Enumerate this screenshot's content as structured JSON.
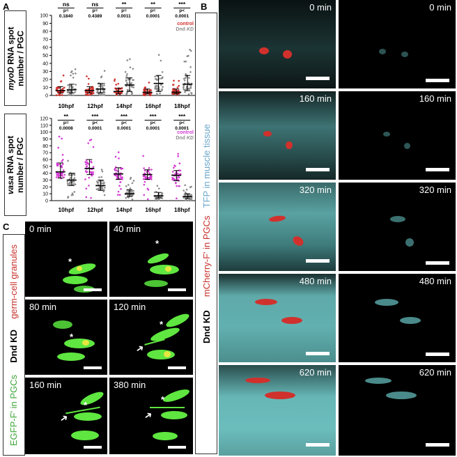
{
  "panels": {
    "A": "A",
    "B": "B",
    "C": "C"
  },
  "colors": {
    "red": "#d0312d",
    "magenta": "#d23cd2",
    "gray": "#8c8c8c",
    "green": "#5fe640",
    "cyan": "#6fd6d6",
    "tfp_label": "#6aa5c8",
    "mcherry_label": "#c8322d"
  },
  "A_top": {
    "ylabel_italic": "myoD",
    "ylabel_rest1": " RNA spot",
    "ylabel_line2": "number / PGC",
    "yticks": [
      "0",
      "10",
      "20",
      "30",
      "40",
      "50",
      "60",
      "70",
      "80",
      "90",
      "100"
    ],
    "categories": [
      "10hpf",
      "12hpf",
      "14hpf",
      "16hpf",
      "18hpf"
    ],
    "sig": [
      "ns",
      "ns",
      "**",
      "**",
      "***"
    ],
    "pline1": [
      "p=",
      "p=",
      "p=",
      "p=",
      "p<"
    ],
    "pline2": [
      "0.1840",
      "0.4389",
      "0.0011",
      "0.0001",
      "0.0001"
    ],
    "legend": {
      "control": "control",
      "kd_prefix": "Dnd ",
      "kd_italic": "KD"
    }
  },
  "A_bottom": {
    "ylabel_italic": "vasa",
    "ylabel_rest1": " RNA spot",
    "ylabel_line2": "number / PGC",
    "yticks": [
      "0",
      "10",
      "20",
      "30",
      "40",
      "50",
      "60",
      "70",
      "80",
      "90",
      "100",
      "110",
      "120"
    ],
    "categories": [
      "10hpf",
      "12hpf",
      "14hpf",
      "16hpf",
      "18hpf"
    ],
    "sig": [
      "**",
      "***",
      "***",
      "***",
      "***"
    ],
    "pline1": [
      "p=",
      "p<",
      "p<",
      "p<",
      "p<"
    ],
    "pline2": [
      "0.0008",
      "0.0001",
      "0.0001",
      "0.0001",
      "0.0001"
    ],
    "legend": {
      "control": "control",
      "kd_prefix": "Dnd ",
      "kd_italic": "KD"
    }
  },
  "chart_data": [
    {
      "type": "scatter",
      "title": "",
      "ylabel": "myoD RNA spot number / PGC",
      "ylim": [
        0,
        100
      ],
      "categories": [
        "10hpf",
        "12hpf",
        "14hpf",
        "16hpf",
        "18hpf"
      ],
      "series": [
        {
          "name": "control",
          "median": [
            6,
            6,
            5,
            4,
            4
          ],
          "q1": [
            3,
            3,
            2,
            2,
            2
          ],
          "q3": [
            11,
            11,
            9,
            8,
            8
          ]
        },
        {
          "name": "Dnd KD",
          "median": [
            7,
            8,
            13,
            15,
            14
          ],
          "q1": [
            3,
            3,
            5,
            5,
            6
          ],
          "q3": [
            14,
            15,
            22,
            25,
            25
          ]
        }
      ]
    },
    {
      "type": "scatter",
      "title": "",
      "ylabel": "vasa RNA spot number / PGC",
      "ylim": [
        0,
        120
      ],
      "categories": [
        "10hpf",
        "12hpf",
        "14hpf",
        "16hpf",
        "18hpf"
      ],
      "series": [
        {
          "name": "control",
          "median": [
            42,
            47,
            39,
            38,
            37
          ],
          "q1": [
            33,
            38,
            31,
            31,
            29
          ],
          "q3": [
            55,
            60,
            48,
            45,
            44
          ]
        },
        {
          "name": "Dnd KD",
          "median": [
            30,
            22,
            10,
            7,
            6
          ],
          "q1": [
            22,
            15,
            6,
            4,
            3
          ],
          "q3": [
            40,
            30,
            16,
            12,
            10
          ]
        }
      ]
    }
  ],
  "B": {
    "label_black": "Dnd KD",
    "label_red": "mCherry-F' in PGCs",
    "label_blue": "TFP in muscle tissue",
    "times": [
      "0 min",
      "160 min",
      "320 min",
      "480 min",
      "620 min"
    ]
  },
  "C": {
    "label_black": "Dnd KD",
    "label_green": "EGFP-F' in PGCs",
    "label_red": "germ-cell granules",
    "times": [
      "0 min",
      "40 min",
      "80 min",
      "120 min",
      "160 min",
      "380 min"
    ],
    "star": "*"
  }
}
